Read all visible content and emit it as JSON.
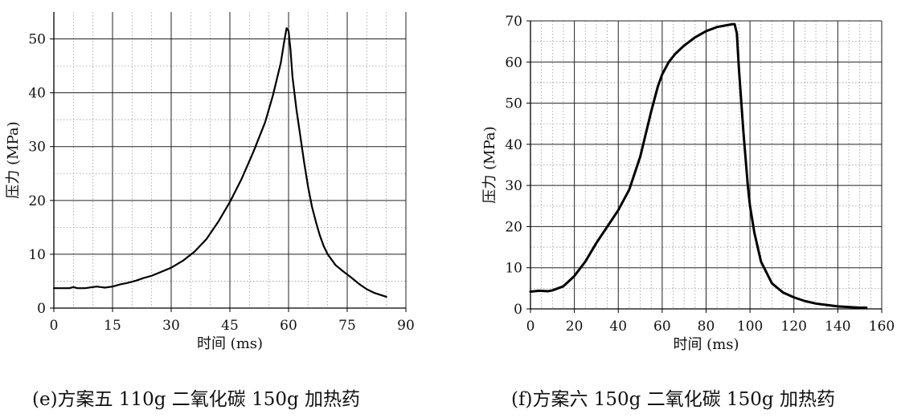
{
  "chart_data": [
    {
      "type": "line",
      "caption": "(e)方案五 110g 二氧化碳  150g 加热药",
      "xlabel": "时间 (ms)",
      "ylabel": "压力 (MPa)",
      "xlim": [
        0,
        90
      ],
      "ylim": [
        0,
        55
      ],
      "xticks": [
        0,
        15,
        30,
        45,
        60,
        75,
        90
      ],
      "yticks": [
        0,
        10,
        20,
        30,
        40,
        50
      ],
      "grid": true,
      "series": [
        {
          "x": [
            0,
            2,
            4,
            5,
            6,
            8,
            10,
            11,
            13,
            15,
            17,
            19,
            21,
            23,
            25,
            27,
            30,
            33,
            36,
            39,
            42,
            45,
            48,
            51,
            54,
            56,
            58,
            59,
            59.5,
            60,
            60.5,
            61,
            62,
            63,
            64,
            65,
            66,
            67,
            68,
            69,
            70,
            72,
            74,
            76,
            78,
            80,
            82,
            85
          ],
          "y": [
            3.7,
            3.7,
            3.7,
            3.9,
            3.7,
            3.7,
            3.9,
            4.0,
            3.8,
            4.0,
            4.4,
            4.7,
            5.1,
            5.6,
            6.0,
            6.6,
            7.5,
            8.8,
            10.5,
            12.8,
            16.0,
            19.7,
            24.0,
            29.0,
            34.5,
            39.5,
            45.5,
            50.0,
            52.0,
            51.5,
            48.0,
            43.0,
            37.0,
            32.0,
            27.0,
            22.5,
            18.8,
            16.0,
            13.5,
            11.5,
            10.0,
            8.0,
            6.8,
            5.7,
            4.5,
            3.5,
            2.8,
            2.1
          ]
        }
      ]
    },
    {
      "type": "line",
      "caption": "(f)方案六 150g 二氧化碳  150g 加热药",
      "xlabel": "时间 (ms)",
      "ylabel": "压力 (MPa)",
      "xlim": [
        0,
        160
      ],
      "ylim": [
        0,
        70
      ],
      "xticks": [
        0,
        20,
        40,
        60,
        80,
        100,
        120,
        140,
        160
      ],
      "yticks": [
        0,
        10,
        20,
        30,
        40,
        50,
        60,
        70
      ],
      "grid": true,
      "series": [
        {
          "x": [
            0,
            4,
            8,
            10,
            15,
            20,
            25,
            30,
            35,
            40,
            45,
            50,
            55,
            58,
            60,
            63,
            66,
            70,
            75,
            80,
            85,
            90,
            92,
            93,
            94,
            95,
            97,
            99,
            100,
            102,
            105,
            110,
            115,
            120,
            125,
            130,
            140,
            150,
            153
          ],
          "y": [
            4.2,
            4.4,
            4.3,
            4.5,
            5.5,
            8.0,
            11.5,
            16.0,
            20.0,
            24.0,
            29.0,
            37.0,
            48.0,
            54.0,
            57.0,
            60.0,
            62.0,
            64.0,
            66.0,
            67.5,
            68.5,
            69.0,
            69.2,
            69.2,
            67.0,
            58.0,
            43.0,
            30.0,
            25.0,
            18.5,
            11.5,
            6.2,
            4.0,
            2.8,
            1.9,
            1.3,
            0.6,
            0.3,
            0.3
          ]
        }
      ]
    }
  ]
}
